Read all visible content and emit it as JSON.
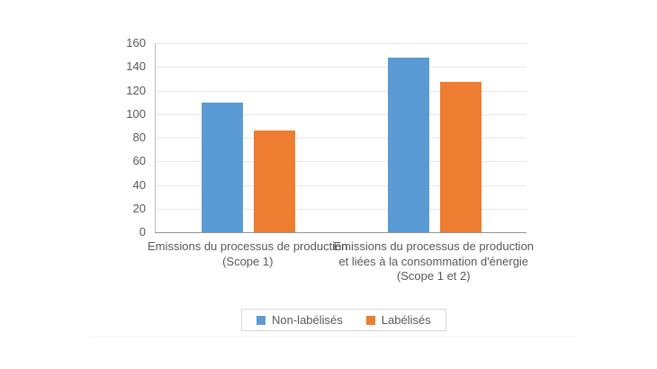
{
  "chart_data": {
    "type": "bar",
    "categories": [
      "Emissions du processus de production (Scope 1)",
      "Emissions du processus de production et liées à la consommation d'énergie (Scope 1 et 2)"
    ],
    "series": [
      {
        "name": "Non-labélisés",
        "color": "#5B9BD5",
        "values": [
          110,
          148
        ]
      },
      {
        "name": "Labélisés",
        "color": "#ED7D31",
        "values": [
          86,
          127
        ]
      }
    ],
    "title": "",
    "xlabel": "",
    "ylabel": "",
    "ylim": [
      0,
      160
    ],
    "yticks": [
      0,
      20,
      40,
      60,
      80,
      100,
      120,
      140,
      160
    ],
    "grid": "horizontal",
    "legend": {
      "position": "bottom",
      "boxed": true
    },
    "colors": {
      "text": "#595959",
      "gridline": "#E7E7E7",
      "y_axis_line": "#BFBFBF",
      "x_axis_line": "#959595",
      "legend_border": "#D9D9D9",
      "background": "#FFFFFF"
    }
  }
}
